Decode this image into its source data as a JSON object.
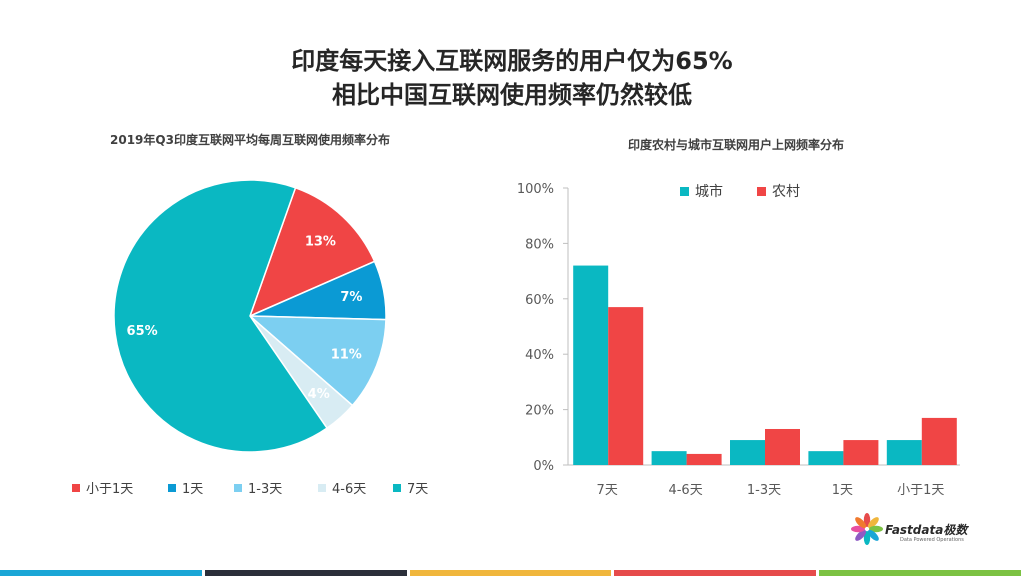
{
  "title_line1": "印度每天接入互联网服务的用户仅为65%",
  "title_line2": "相比中国互联网使用频率仍然较低",
  "logo": {
    "name": "Fastdata极数",
    "tagline": "Data Powered Operations"
  },
  "chart_data": [
    {
      "type": "pie",
      "title": "2019年Q3印度互联网平均每周互联网使用频率分布",
      "legend_position": "bottom",
      "slices": [
        {
          "label": "小于1天",
          "value": 13,
          "display": "13%",
          "color": "#f04545"
        },
        {
          "label": "1天",
          "value": 7,
          "display": "7%",
          "color": "#0b9ad4"
        },
        {
          "label": "1-3天",
          "value": 11,
          "display": "11%",
          "color": "#7ccff1"
        },
        {
          "label": "4-6天",
          "value": 4,
          "display": "4%",
          "color": "#d8ecf3"
        },
        {
          "label": "7天",
          "value": 65,
          "display": "65%",
          "color": "#0ab8c2"
        }
      ]
    },
    {
      "type": "bar",
      "title": "印度农村与城市互联网用户上网频率分布",
      "categories": [
        "7天",
        "4-6天",
        "1-3天",
        "1天",
        "小于1天"
      ],
      "series": [
        {
          "name": "城市",
          "color": "#0ab8c2",
          "values": [
            72,
            5,
            9,
            5,
            9
          ]
        },
        {
          "name": "农村",
          "color": "#f04545",
          "values": [
            57,
            4,
            13,
            9,
            17
          ]
        }
      ],
      "ylim": [
        0,
        100
      ],
      "yticks": [
        "0%",
        "20%",
        "40%",
        "60%",
        "80%",
        "100%"
      ],
      "legend_position": "top",
      "grid": false
    }
  ],
  "bottom_bar_colors": [
    "#1aa6d6",
    "#2b2f3a",
    "#f0b63c",
    "#e64b4b",
    "#7cc243"
  ]
}
